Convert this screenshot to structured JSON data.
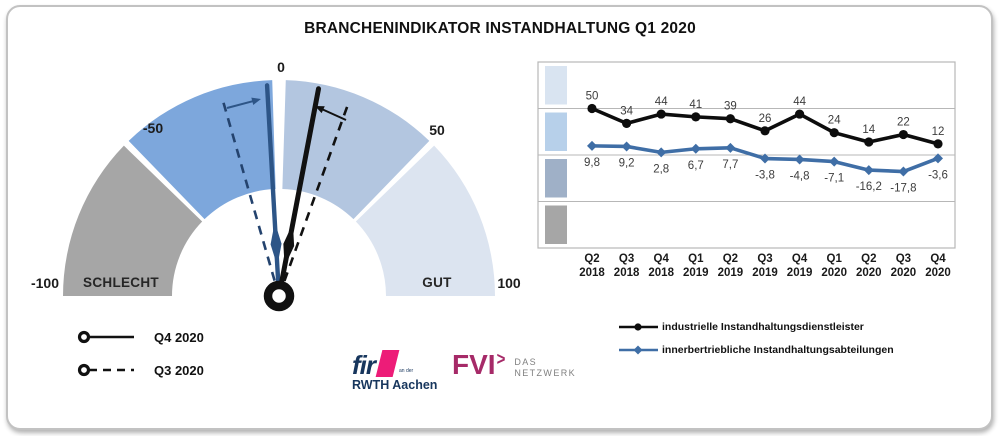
{
  "title": "BRANCHENINDIKATOR INSTANDHALTUNG Q1 2020",
  "colors": {
    "black_series": "#0d0d0d",
    "blue_series": "#3f6ea6",
    "needle_blue": "#2d5587",
    "needle_blue_dashed": "#24436e",
    "gridline": "#b7b7b7",
    "label_text": "#3d3d3d",
    "band_blocks": [
      "#d9e4f1",
      "#b7d0ea",
      "#9fb0c7",
      "#a6a6a6"
    ],
    "fir_blue": "#17365d",
    "fir_pink": "#ed1c78",
    "fvi_magenta": "#a62a68",
    "fvi_gray": "#7f7f7f"
  },
  "chart_data": [
    {
      "type": "gauge",
      "range": [
        -100,
        100
      ],
      "axis_labels": [
        "-100",
        "-50",
        "0",
        "50",
        "100"
      ],
      "segments": [
        {
          "label": "SCHLECHT",
          "from": -100,
          "to": -50,
          "color": "#a6a6a6"
        },
        {
          "label": "",
          "from": -50,
          "to": 0,
          "color": "#7da7dc"
        },
        {
          "label": "",
          "from": 0,
          "to": 50,
          "color": "#b3c6e0"
        },
        {
          "label": "GUT",
          "from": 50,
          "to": 100,
          "color": "#dce4f0"
        }
      ],
      "needles": [
        {
          "series": "innerbertriebliche Instandhaltungsabteilungen",
          "period": "Q3 2020",
          "value": -17.8,
          "style": "dashed",
          "color": "#24436e"
        },
        {
          "series": "industrielle Instandhaltungsdienstleister",
          "period": "Q3 2020",
          "value": 22,
          "style": "dashed",
          "color": "#111111"
        },
        {
          "series": "innerbertriebliche Instandhaltungsabteilungen",
          "period": "Q4 2020",
          "value": -3.6,
          "style": "solid",
          "color": "#2d5587"
        },
        {
          "series": "industrielle Instandhaltungsdienstleister",
          "period": "Q4 2020",
          "value": 12,
          "style": "solid",
          "color": "#111111"
        }
      ],
      "legend": [
        {
          "label": "Q4 2020",
          "style": "solid"
        },
        {
          "label": "Q3 2020",
          "style": "dashed"
        }
      ]
    },
    {
      "type": "line",
      "categories": [
        "Q2 2018",
        "Q3 2018",
        "Q4 2018",
        "Q1 2019",
        "Q2 2019",
        "Q3 2019",
        "Q4 2019",
        "Q1 2020",
        "Q2 2020",
        "Q3 2020",
        "Q4 2020"
      ],
      "ylim": [
        -100,
        100
      ],
      "gridlines": [
        50,
        0,
        -50
      ],
      "legend_position": "bottom",
      "series": [
        {
          "name": "industrielle Instandhaltungsdienstleister",
          "color": "#0d0d0d",
          "marker": "circle",
          "label_position": "above",
          "values": [
            50,
            34,
            44,
            41,
            39,
            26,
            44,
            24,
            14,
            22,
            12
          ],
          "labels": [
            "50",
            "34",
            "44",
            "41",
            "39",
            "26",
            "44",
            "24",
            "14",
            "22",
            "12"
          ]
        },
        {
          "name": "innerbertriebliche Instandhaltungsabteilungen",
          "color": "#3f6ea6",
          "marker": "diamond",
          "label_position": "below",
          "values": [
            9.8,
            9.2,
            2.8,
            6.7,
            7.7,
            -3.8,
            -4.8,
            -7.1,
            -16.2,
            -17.8,
            -3.6
          ],
          "labels": [
            "9,8",
            "9,2",
            "2,8",
            "6,7",
            "7,7",
            "-3,8",
            "-4,8",
            "-7,1",
            "-16,2",
            "-17,8",
            "-3,6"
          ]
        }
      ]
    }
  ],
  "logos": {
    "fir": {
      "text": "fir",
      "small": "an der",
      "sub": "RWTH Aachen"
    },
    "fvi": {
      "text": "FVI",
      "chevron": ">",
      "sub1": "DAS",
      "sub2": "NETZWERK"
    }
  }
}
